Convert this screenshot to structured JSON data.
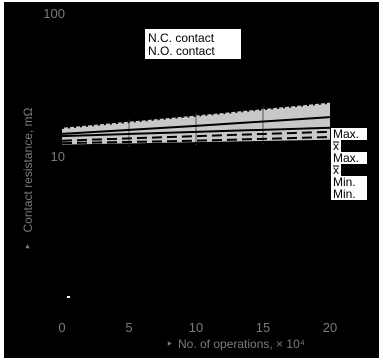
{
  "chart_data": {
    "type": "line",
    "title": "",
    "xlabel": "No. of operations, × 10⁴",
    "ylabel": "Contact resistance, mΩ",
    "x_ticks": [
      0,
      5,
      10,
      15,
      20
    ],
    "y_ticks": [
      10,
      100
    ],
    "xlim": [
      -2,
      22
    ],
    "ylim": [
      1,
      100
    ],
    "y_scale": "log",
    "grid": false,
    "legend": [
      "N.C. contact",
      "N.O. contact"
    ],
    "legend_position": "top-center",
    "background_color": "#000000",
    "band_color": "#c8c8c8",
    "series": [
      {
        "name": "N.C. contact",
        "curve": "Max.",
        "style": "dotted",
        "x": [
          0,
          10,
          20
        ],
        "y": [
          16,
          19.5,
          24
        ]
      },
      {
        "name": "N.C. contact",
        "curve": "x̄",
        "style": "solid",
        "x": [
          0,
          10,
          20
        ],
        "y": [
          14.5,
          16.5,
          19
        ]
      },
      {
        "name": "N.O. contact",
        "curve": "Max.",
        "style": "solid",
        "x": [
          0,
          10,
          20
        ],
        "y": [
          14,
          15,
          16
        ]
      },
      {
        "name": "N.O. contact",
        "curve": "x̄",
        "style": "dashed",
        "x": [
          0,
          10,
          20
        ],
        "y": [
          13,
          14,
          15
        ]
      },
      {
        "name": "N.C. contact",
        "curve": "Min.",
        "style": "dashed",
        "x": [
          0,
          10,
          20
        ],
        "y": [
          12.5,
          13,
          13.8
        ]
      },
      {
        "name": "N.O. contact",
        "curve": "Min.",
        "style": "solid",
        "x": [
          0,
          10,
          20
        ],
        "y": [
          12,
          12.5,
          13
        ]
      }
    ],
    "right_labels": [
      "Max.",
      "x",
      "Max.",
      "x",
      "Min.",
      "Min."
    ]
  }
}
